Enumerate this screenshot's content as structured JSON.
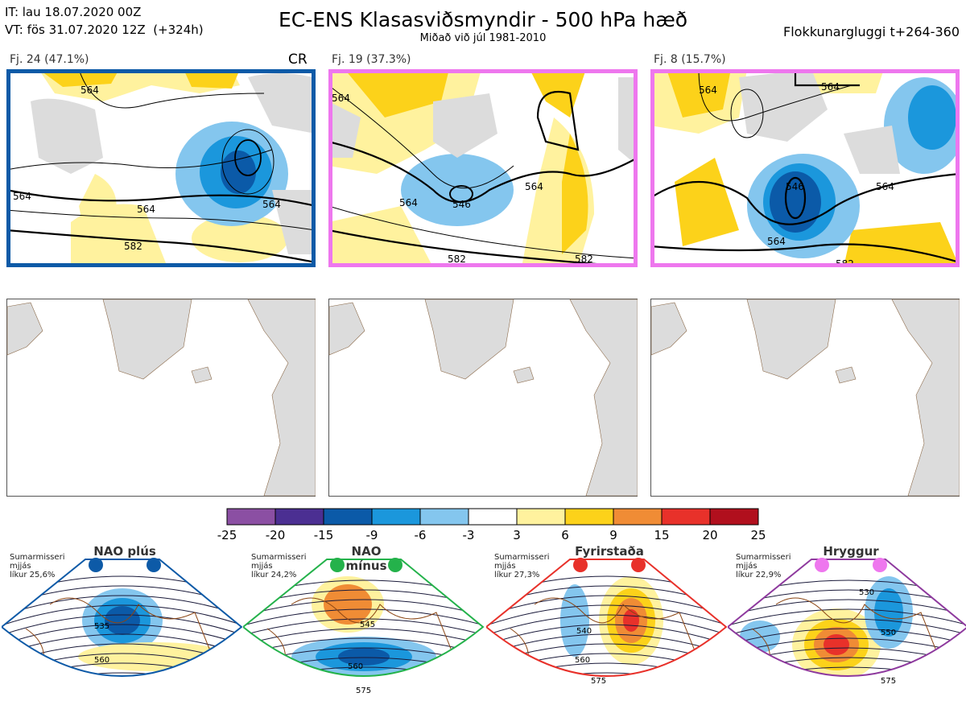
{
  "header": {
    "init_time": "IT: lau 18.07.2020 00Z",
    "valid_time": "VT: fös 31.07.2020 12Z  (+324h)",
    "title": "EC-ENS Klasasviðsmyndir - 500 hPa hæð",
    "subtitle": "Miðað við júl 1981-2010",
    "window": "Flokkunargluggi t+264-360"
  },
  "clusters": [
    {
      "label": "Fj. 24 (47.1%)",
      "tag": "CR",
      "frame_color": "#0d5aa7",
      "contours": [
        "564",
        "564",
        "564",
        "582",
        "564"
      ]
    },
    {
      "label": "Fj. 19 (37.3%)",
      "tag": "",
      "frame_color": "#ee77ee",
      "contours": [
        "564",
        "564",
        "546",
        "582",
        "564",
        "582"
      ]
    },
    {
      "label": "Fj. 8 (15.7%)",
      "tag": "",
      "frame_color": "#ee77ee",
      "contours": [
        "564",
        "564",
        "564",
        "546",
        "564",
        "582"
      ]
    }
  ],
  "colorbar": {
    "ticks": [
      "-25",
      "-20",
      "-15",
      "-9",
      "-6",
      "-3",
      "3",
      "6",
      "9",
      "15",
      "20",
      "25"
    ],
    "colors": [
      "#8b4fa3",
      "#4b2f92",
      "#0b5aa8",
      "#1b97dc",
      "#84c6ee",
      "#ffffff",
      "#fff29e",
      "#fcd21a",
      "#f08c35",
      "#e8312a",
      "#b10f1d"
    ]
  },
  "regimes": [
    {
      "name": "NAO plús",
      "note": [
        "Sumarmisseri",
        "mjjás",
        "líkur 25,6%"
      ],
      "dot_color": "#0d5aa7",
      "frame_color": "#0d5aa7",
      "labels": [
        "535",
        "560"
      ]
    },
    {
      "name": "NAO mínus",
      "note": [
        "Sumarmisseri",
        "mjjás",
        "líkur 24,2%"
      ],
      "dot_color": "#24b24b",
      "frame_color": "#24b24b",
      "labels": [
        "545",
        "560",
        "575"
      ]
    },
    {
      "name": "Fyrirstaða",
      "note": [
        "Sumarmisseri",
        "mjjás",
        "líkur 27,3%"
      ],
      "dot_color": "#e8312a",
      "frame_color": "#e8312a",
      "labels": [
        "540",
        "560",
        "575"
      ]
    },
    {
      "name": "Hryggur",
      "note": [
        "Sumarmisseri",
        "mjjás",
        "líkur 22,9%"
      ],
      "dot_color": "#ee77ee",
      "frame_color": "#8e3a9e",
      "labels": [
        "530",
        "550",
        "575"
      ]
    }
  ]
}
